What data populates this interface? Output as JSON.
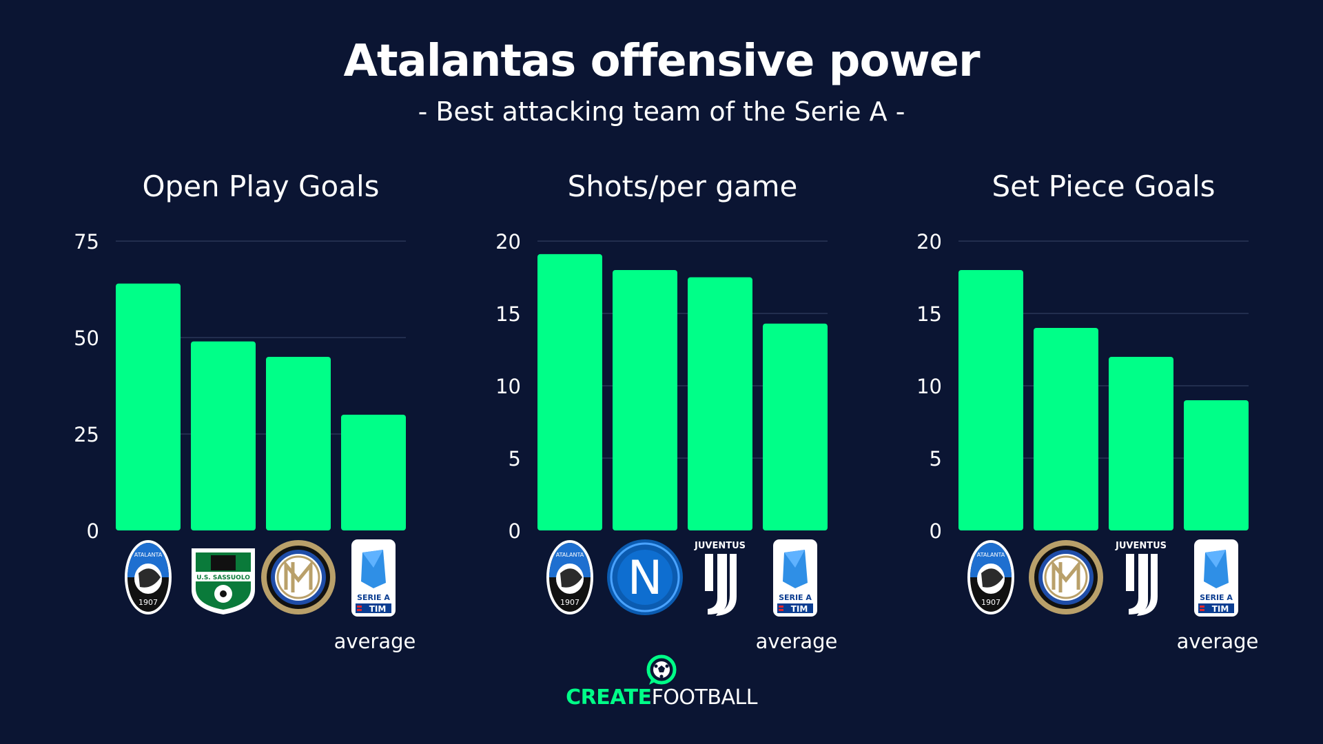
{
  "title": "Atalantas offensive power",
  "subtitle": "- Best attacking team of the Serie A -",
  "colors": {
    "background": "#0b1533",
    "bar": "#00ff88",
    "grid": "#2a3658",
    "text": "#ffffff"
  },
  "chart_data": [
    {
      "type": "bar",
      "title": "Open Play Goals",
      "categories": [
        "Atalanta",
        "Sassuolo",
        "Inter",
        "Serie A average"
      ],
      "category_label": [
        "",
        "",
        "",
        "average"
      ],
      "logos": [
        "atalanta-logo",
        "sassuolo-logo",
        "inter-logo",
        "serie-a-logo"
      ],
      "values": [
        64,
        49,
        45,
        30
      ],
      "ylim": [
        0,
        75
      ],
      "yticks": [
        0,
        25,
        50,
        75
      ],
      "grid": true
    },
    {
      "type": "bar",
      "title": "Shots/per game",
      "categories": [
        "Atalanta",
        "Napoli",
        "Juventus",
        "Serie A average"
      ],
      "category_label": [
        "",
        "",
        "",
        "average"
      ],
      "logos": [
        "atalanta-logo",
        "napoli-logo",
        "juventus-logo",
        "serie-a-logo"
      ],
      "values": [
        19.1,
        18.0,
        17.5,
        14.3
      ],
      "ylim": [
        0,
        20
      ],
      "yticks": [
        0,
        5,
        10,
        15,
        20
      ],
      "grid": true
    },
    {
      "type": "bar",
      "title": "Set Piece Goals",
      "categories": [
        "Atalanta",
        "Inter",
        "Juventus",
        "Serie A average"
      ],
      "category_label": [
        "",
        "",
        "",
        "average"
      ],
      "logos": [
        "atalanta-logo",
        "inter-logo",
        "juventus-logo",
        "serie-a-logo"
      ],
      "values": [
        18,
        14,
        12,
        9
      ],
      "ylim": [
        0,
        20
      ],
      "yticks": [
        0,
        5,
        10,
        15,
        20
      ],
      "grid": true
    }
  ],
  "logo_text": {
    "atalanta": "ATALANTA",
    "atalanta_year": "1907",
    "sassuolo": "U.S. SASSUOLO",
    "juventus": "JUVENTUS",
    "napoli": "N",
    "serie_a": "SERIE A",
    "serie_a_sponsor": "TIM"
  },
  "brand": {
    "part1": "CREATE",
    "part2": "FOOTBALL"
  }
}
